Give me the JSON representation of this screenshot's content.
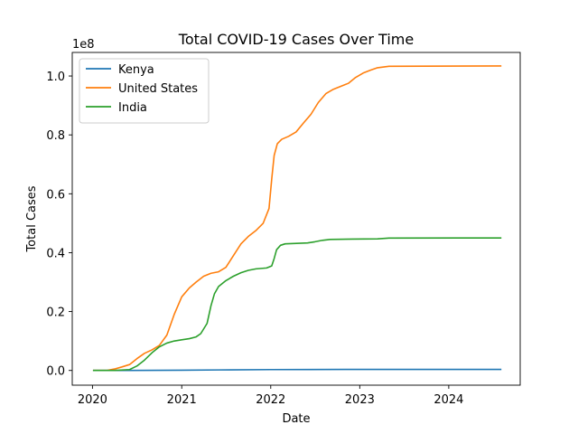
{
  "chart_data": {
    "type": "line",
    "title": "Total COVID-19 Cases Over Time",
    "xlabel": "Date",
    "ylabel": "Total Cases",
    "y_multiplier_label": "1e8",
    "y_scale": 100000000,
    "xlim": [
      "2019-10-10",
      "2024-10-20"
    ],
    "ylim": [
      -5000000,
      108000000
    ],
    "x_ticks": [
      {
        "date": "2020-01-01",
        "label": "2020"
      },
      {
        "date": "2021-01-01",
        "label": "2021"
      },
      {
        "date": "2022-01-01",
        "label": "2022"
      },
      {
        "date": "2023-01-01",
        "label": "2023"
      },
      {
        "date": "2024-01-01",
        "label": "2024"
      }
    ],
    "y_ticks": [
      {
        "value": 0,
        "label": "0.0"
      },
      {
        "value": 20000000,
        "label": "0.2"
      },
      {
        "value": 40000000,
        "label": "0.4"
      },
      {
        "value": 60000000,
        "label": "0.6"
      },
      {
        "value": 80000000,
        "label": "0.8"
      },
      {
        "value": 100000000,
        "label": "1.0"
      }
    ],
    "grid": false,
    "legend_position": "top-left",
    "series": [
      {
        "name": "Kenya",
        "color": "#1f77b4",
        "points": [
          [
            "2020-01-03",
            0
          ],
          [
            "2020-06-01",
            0
          ],
          [
            "2021-01-01",
            100000
          ],
          [
            "2021-06-01",
            180000
          ],
          [
            "2022-01-01",
            300000
          ],
          [
            "2022-06-01",
            330000
          ],
          [
            "2023-01-01",
            342000
          ],
          [
            "2024-01-01",
            343000
          ],
          [
            "2024-08-04",
            344000
          ]
        ]
      },
      {
        "name": "United States",
        "color": "#ff7f0e",
        "points": [
          [
            "2020-01-03",
            0
          ],
          [
            "2020-03-01",
            0
          ],
          [
            "2020-04-01",
            500000
          ],
          [
            "2020-05-01",
            1200000
          ],
          [
            "2020-06-01",
            2000000
          ],
          [
            "2020-07-01",
            4000000
          ],
          [
            "2020-08-01",
            5800000
          ],
          [
            "2020-09-01",
            7000000
          ],
          [
            "2020-10-01",
            8500000
          ],
          [
            "2020-11-01",
            12000000
          ],
          [
            "2020-12-01",
            19000000
          ],
          [
            "2021-01-01",
            25000000
          ],
          [
            "2021-02-01",
            28000000
          ],
          [
            "2021-03-01",
            30000000
          ],
          [
            "2021-04-01",
            32000000
          ],
          [
            "2021-05-01",
            33000000
          ],
          [
            "2021-06-01",
            33500000
          ],
          [
            "2021-07-01",
            35000000
          ],
          [
            "2021-08-01",
            39000000
          ],
          [
            "2021-09-01",
            43000000
          ],
          [
            "2021-10-01",
            45500000
          ],
          [
            "2021-11-01",
            47500000
          ],
          [
            "2021-12-01",
            50000000
          ],
          [
            "2021-12-25",
            55000000
          ],
          [
            "2022-01-05",
            65000000
          ],
          [
            "2022-01-15",
            73000000
          ],
          [
            "2022-01-28",
            77000000
          ],
          [
            "2022-02-15",
            78500000
          ],
          [
            "2022-03-15",
            79500000
          ],
          [
            "2022-04-15",
            81000000
          ],
          [
            "2022-05-15",
            84000000
          ],
          [
            "2022-06-15",
            87000000
          ],
          [
            "2022-07-15",
            91000000
          ],
          [
            "2022-08-15",
            94000000
          ],
          [
            "2022-09-15",
            95500000
          ],
          [
            "2022-10-15",
            96500000
          ],
          [
            "2022-11-15",
            97500000
          ],
          [
            "2022-12-15",
            99500000
          ],
          [
            "2023-01-15",
            101000000
          ],
          [
            "2023-02-15",
            102000000
          ],
          [
            "2023-03-15",
            102800000
          ],
          [
            "2023-05-01",
            103300000
          ],
          [
            "2024-08-04",
            103400000
          ]
        ]
      },
      {
        "name": "India",
        "color": "#2ca02c",
        "points": [
          [
            "2020-01-03",
            0
          ],
          [
            "2020-04-01",
            0
          ],
          [
            "2020-06-01",
            300000
          ],
          [
            "2020-07-01",
            1500000
          ],
          [
            "2020-08-01",
            3500000
          ],
          [
            "2020-09-01",
            6000000
          ],
          [
            "2020-10-01",
            8000000
          ],
          [
            "2020-11-01",
            9300000
          ],
          [
            "2020-12-01",
            10000000
          ],
          [
            "2021-01-01",
            10400000
          ],
          [
            "2021-02-01",
            10800000
          ],
          [
            "2021-03-01",
            11400000
          ],
          [
            "2021-03-20",
            12500000
          ],
          [
            "2021-04-15",
            16000000
          ],
          [
            "2021-05-01",
            22000000
          ],
          [
            "2021-05-15",
            26000000
          ],
          [
            "2021-06-01",
            28500000
          ],
          [
            "2021-07-01",
            30500000
          ],
          [
            "2021-08-01",
            32000000
          ],
          [
            "2021-09-01",
            33200000
          ],
          [
            "2021-10-01",
            34000000
          ],
          [
            "2021-11-01",
            34500000
          ],
          [
            "2021-12-15",
            34800000
          ],
          [
            "2022-01-05",
            35500000
          ],
          [
            "2022-01-15",
            38000000
          ],
          [
            "2022-01-25",
            41000000
          ],
          [
            "2022-02-10",
            42500000
          ],
          [
            "2022-03-01",
            43000000
          ],
          [
            "2022-06-01",
            43300000
          ],
          [
            "2022-07-01",
            43700000
          ],
          [
            "2022-08-01",
            44200000
          ],
          [
            "2022-09-01",
            44500000
          ],
          [
            "2022-12-01",
            44600000
          ],
          [
            "2023-03-15",
            44700000
          ],
          [
            "2023-05-01",
            44950000
          ],
          [
            "2024-08-04",
            45000000
          ]
        ]
      }
    ]
  }
}
